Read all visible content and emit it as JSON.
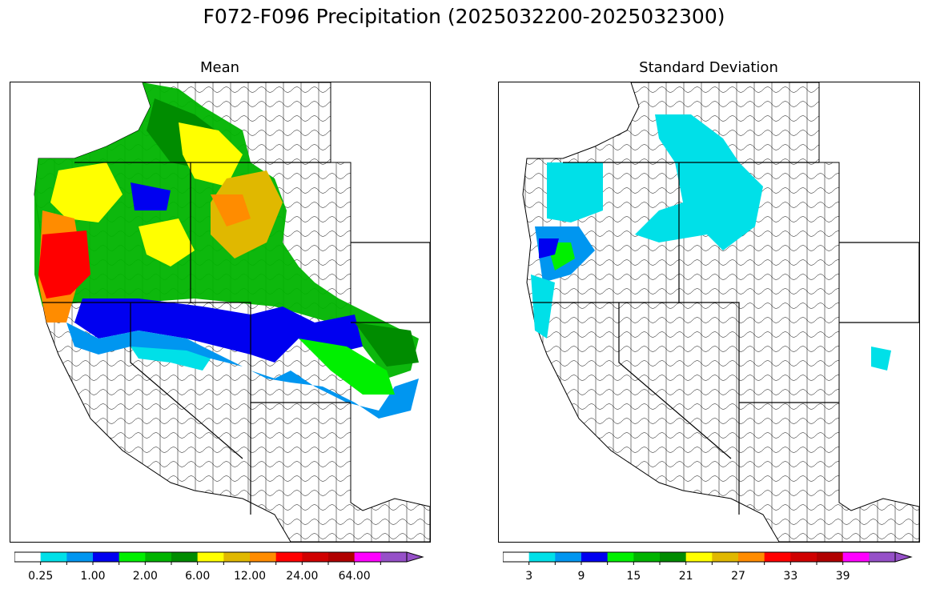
{
  "title": "F072-F096 Precipitation (2025032200-2025032300)",
  "panels": [
    {
      "title": "Mean"
    },
    {
      "title": "Standard Deviation"
    }
  ],
  "mean_colorbar": {
    "colors": [
      "#ffffff",
      "#00e0e8",
      "#0096f0",
      "#0000f0",
      "#00f000",
      "#00b400",
      "#008c00",
      "#ffff00",
      "#e0b800",
      "#ff8c00",
      "#ff0000",
      "#d00000",
      "#b00000",
      "#ff00ff",
      "#9650c8"
    ],
    "labels": [
      "0.25",
      "1.00",
      "2.00",
      "6.00",
      "12.00",
      "24.00",
      "64.00"
    ]
  },
  "sd_colorbar": {
    "colors": [
      "#ffffff",
      "#00e0e8",
      "#0096f0",
      "#0000f0",
      "#00f000",
      "#00b400",
      "#008c00",
      "#ffff00",
      "#e0b800",
      "#ff8c00",
      "#ff0000",
      "#d00000",
      "#b00000",
      "#ff00ff",
      "#9650c8"
    ],
    "labels": [
      "3",
      "9",
      "15",
      "21",
      "27",
      "33",
      "39"
    ]
  }
}
